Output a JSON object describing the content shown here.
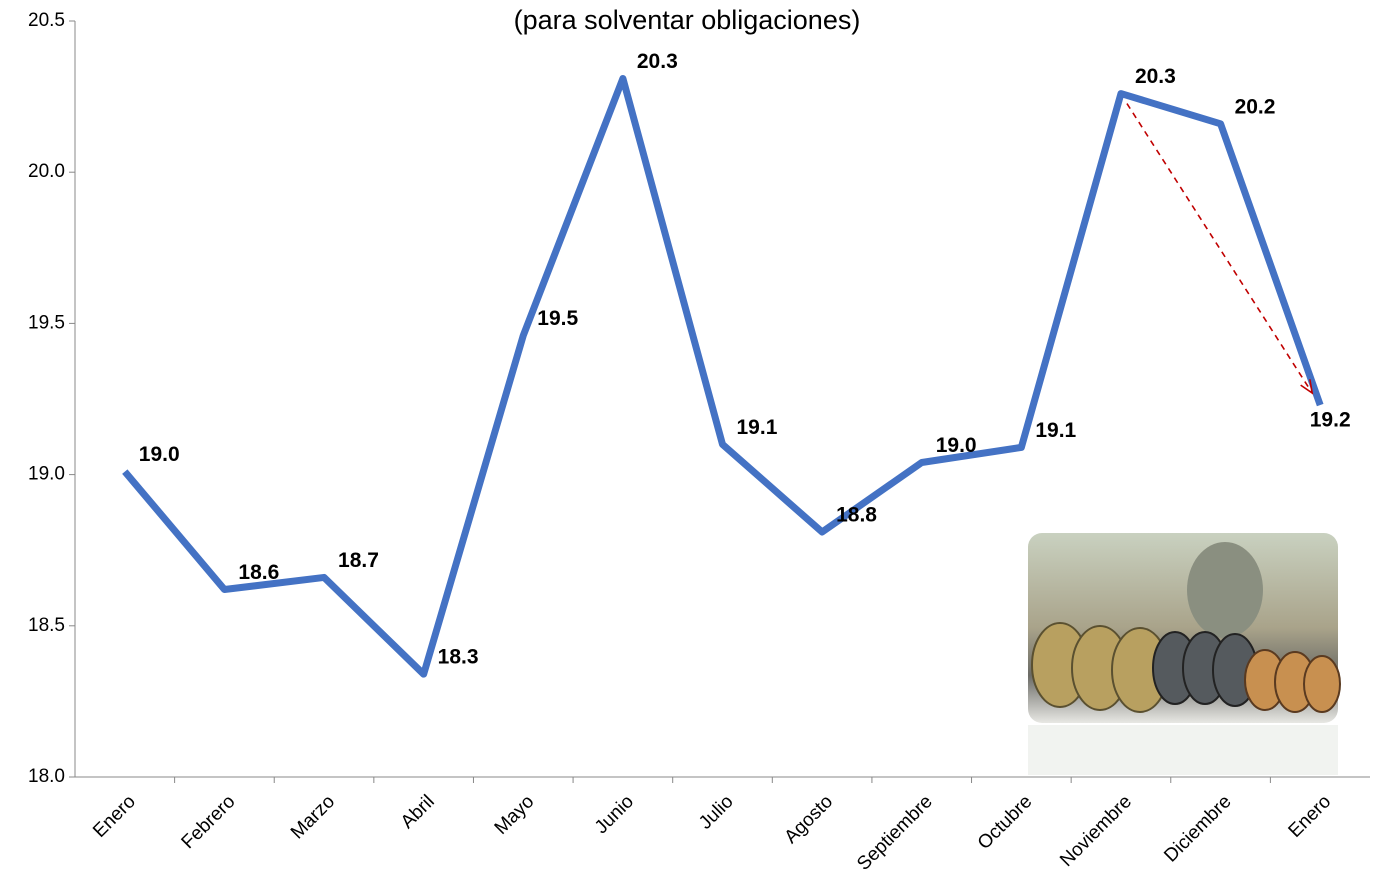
{
  "chart_data": {
    "type": "line",
    "title": "(para solventar obligaciones)",
    "categories": [
      "Enero",
      "Febrero",
      "Marzo",
      "Abril",
      "Mayo",
      "Junio",
      "Julio",
      "Agosto",
      "Septiembre",
      "Octubre",
      "Noviembre",
      "Diciembre",
      "Enero"
    ],
    "series": [
      {
        "color": "#4472c4",
        "values": [
          19.01,
          18.62,
          18.66,
          18.34,
          19.46,
          20.31,
          19.1,
          18.81,
          19.04,
          19.09,
          20.26,
          20.16,
          19.23
        ],
        "value_labels": [
          "19.0",
          "18.6",
          "18.7",
          "18.3",
          "19.5",
          "20.3",
          "19.1",
          "18.8",
          "19.0",
          "19.1",
          "20.3",
          "20.2",
          "19.2"
        ]
      }
    ],
    "ylim": [
      18,
      20.5
    ],
    "yticks": [
      {
        "value": 18,
        "label": "18.0"
      },
      18.5,
      {
        "value": 19,
        "label": "19.0"
      },
      19.5,
      {
        "value": 20,
        "label": "20.0"
      },
      20.5
    ],
    "grid": false
  }
}
